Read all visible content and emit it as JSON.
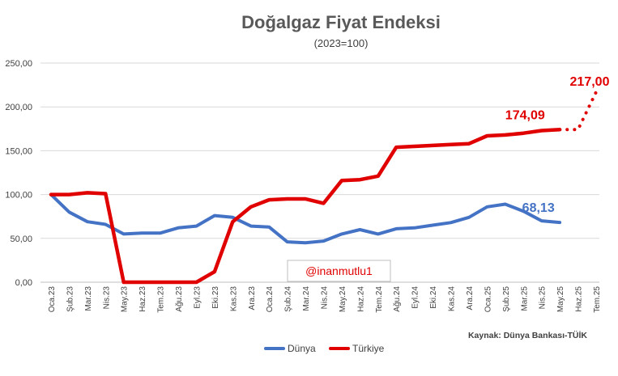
{
  "chart_data": {
    "type": "line",
    "title": "Doğalgaz Fiyat Endeksi",
    "subtitle": "(2023=100)",
    "ylim": [
      0,
      250
    ],
    "yticks": [
      "0,00",
      "50,00",
      "100,00",
      "150,00",
      "200,00",
      "250,00"
    ],
    "ytick_values": [
      0,
      50,
      100,
      150,
      200,
      250
    ],
    "grid": true,
    "categories": [
      "Oca.23",
      "Şub.23",
      "Mar.23",
      "Nis.23",
      "May.23",
      "Haz.23",
      "Tem.23",
      "Ağu.23",
      "Eyl.23",
      "Eki.23",
      "Kas.23",
      "Ara.23",
      "Oca.24",
      "Şub.24",
      "Mar.24",
      "Nis.24",
      "May.24",
      "Haz.24",
      "Tem.24",
      "Ağu.24",
      "Eyl.24",
      "Eki.24",
      "Kas.24",
      "Ara.24",
      "Oca.25",
      "Şub.25",
      "Mar.25",
      "Nis.25",
      "May.25",
      "Haz.25",
      "Tem.25"
    ],
    "series": [
      {
        "name": "Dünya",
        "color": "#4472c4",
        "values": [
          100,
          80,
          69,
          66,
          55,
          56,
          56,
          62,
          64,
          76,
          74,
          64,
          63,
          46,
          45,
          47,
          55,
          60,
          55,
          61,
          62,
          65,
          68,
          74,
          86,
          89,
          81,
          70,
          68.13,
          null,
          null
        ],
        "end_label": "68,13"
      },
      {
        "name": "Türkiye",
        "color": "#e00000",
        "values": [
          100,
          100,
          102,
          101,
          0,
          0,
          0,
          0,
          0,
          12,
          69,
          86,
          94,
          95,
          95,
          90,
          116,
          117,
          121,
          154,
          155,
          156,
          157,
          158,
          167,
          168,
          170,
          173,
          174.09,
          null,
          null
        ],
        "end_label": "174,09"
      }
    ],
    "projection": {
      "series": "Türkiye",
      "color": "#e00000",
      "points": [
        {
          "x": "May.25",
          "y": 174.09
        },
        {
          "x": "Haz.25",
          "y": 174.09
        },
        {
          "x": "Tem.25",
          "y": 217
        }
      ],
      "label": "217,00"
    },
    "annotation": "@inanmutlu1",
    "source": "Kaynak: Dünya Bankası-TÜİK",
    "legend": [
      "Dünya",
      "Türkiye"
    ],
    "legend_position": "bottom-center"
  }
}
